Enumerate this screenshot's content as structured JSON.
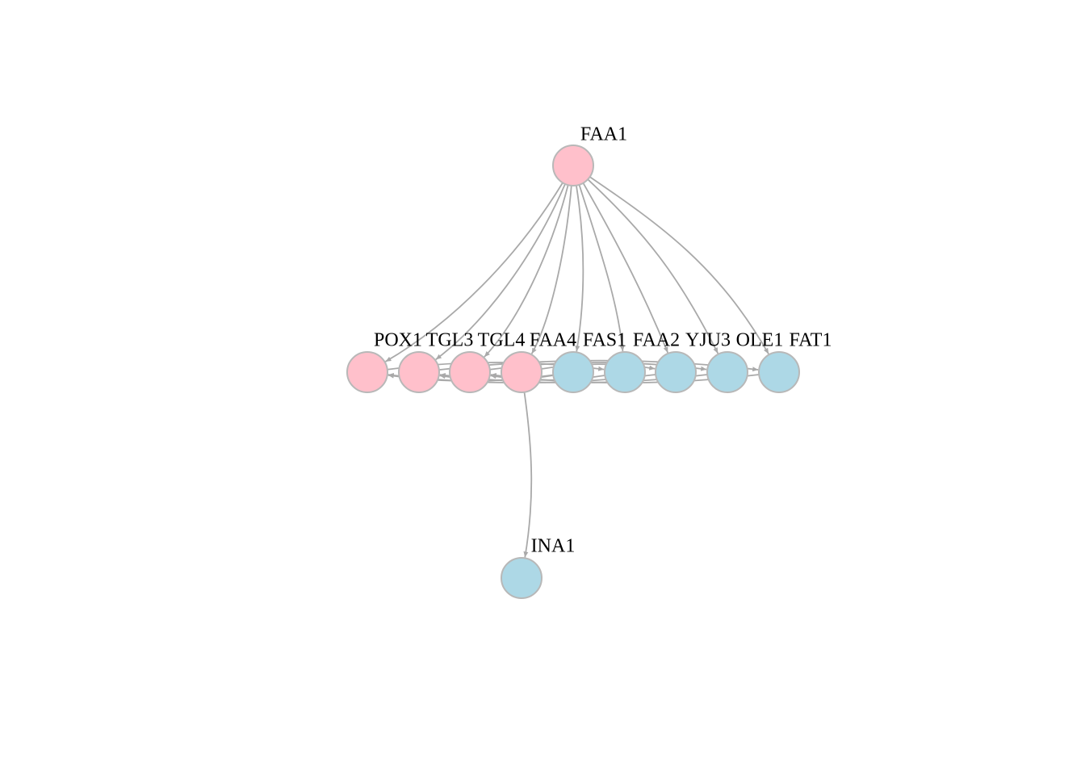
{
  "colors": {
    "pink_node": "#ffc0cb",
    "blue_node": "#add8e6",
    "edge": "#a9a9a9",
    "node_border": "#b8b8b8"
  },
  "nodes": [
    {
      "id": "FAA1",
      "label": "FAA1",
      "color": "pink"
    },
    {
      "id": "POX1",
      "label": "POX1",
      "color": "pink"
    },
    {
      "id": "TGL3",
      "label": "TGL3",
      "color": "pink"
    },
    {
      "id": "TGL4",
      "label": "TGL4",
      "color": "pink"
    },
    {
      "id": "FAA4",
      "label": "FAA4",
      "color": "pink"
    },
    {
      "id": "FAS1",
      "label": "FAS1",
      "color": "blue"
    },
    {
      "id": "FAA2",
      "label": "FAA2",
      "color": "blue"
    },
    {
      "id": "YJU3",
      "label": "YJU3",
      "color": "blue"
    },
    {
      "id": "OLE1",
      "label": "OLE1",
      "color": "blue"
    },
    {
      "id": "FAT1",
      "label": "FAT1",
      "color": "blue"
    },
    {
      "id": "INA1",
      "label": "INA1",
      "color": "blue"
    }
  ],
  "edges": [
    {
      "from": "FAA1",
      "to": "POX1"
    },
    {
      "from": "FAA1",
      "to": "TGL3"
    },
    {
      "from": "FAA1",
      "to": "TGL4"
    },
    {
      "from": "FAA1",
      "to": "FAA4"
    },
    {
      "from": "FAA1",
      "to": "FAS1"
    },
    {
      "from": "FAA1",
      "to": "FAA2"
    },
    {
      "from": "FAA1",
      "to": "YJU3"
    },
    {
      "from": "FAA1",
      "to": "OLE1"
    },
    {
      "from": "FAA1",
      "to": "FAT1"
    },
    {
      "from": "FAA4",
      "to": "INA1"
    },
    {
      "from": "FAS1",
      "to": "POX1"
    },
    {
      "from": "FAS1",
      "to": "TGL3"
    },
    {
      "from": "FAA2",
      "to": "TGL4"
    },
    {
      "from": "YJU3",
      "to": "POX1"
    },
    {
      "from": "OLE1",
      "to": "TGL3"
    },
    {
      "from": "FAT1",
      "to": "TGL4"
    },
    {
      "from": "TGL3",
      "to": "FAT1"
    },
    {
      "from": "TGL4",
      "to": "OLE1"
    },
    {
      "from": "FAA4",
      "to": "YJU3"
    },
    {
      "from": "POX1",
      "to": "FAA2"
    }
  ]
}
